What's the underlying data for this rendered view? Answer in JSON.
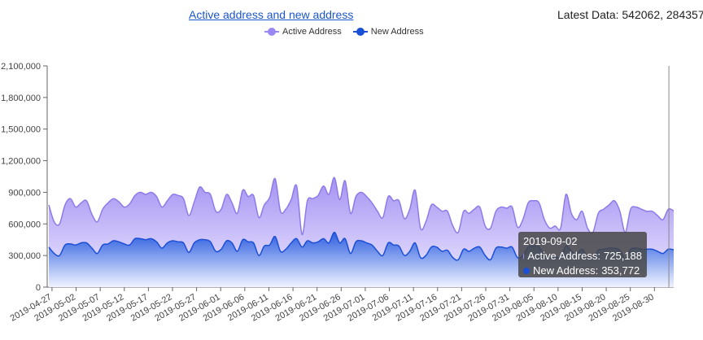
{
  "header": {
    "title": "Active address and new address",
    "latest_label": "Latest Data:",
    "latest_values": "542062, 284357"
  },
  "legend": {
    "items": [
      {
        "label": "Active Address",
        "color": "#9b87f5"
      },
      {
        "label": "New Address",
        "color": "#1a4fd6"
      }
    ]
  },
  "tooltip": {
    "date": "2019-09-02",
    "active_label": "Active Address:",
    "active_value": "725,188",
    "new_label": "New Address:",
    "new_value": "353,772"
  },
  "chart_data": {
    "type": "area",
    "ylim": [
      0,
      2100000
    ],
    "yticks": [
      0,
      300000,
      600000,
      900000,
      1200000,
      1500000,
      1800000,
      2100000
    ],
    "ytick_labels": [
      "0",
      "300,000",
      "600,000",
      "900,000",
      "1,200,000",
      "1,500,000",
      "1,800,000",
      "2,100,000"
    ],
    "x_start": "2019-04-26",
    "x_end": "2019-09-03",
    "xtick_labels": [
      "2019-04-27",
      "2019-05-02",
      "2019-05-07",
      "2019-05-12",
      "2019-05-17",
      "2019-05-22",
      "2019-05-27",
      "2019-06-01",
      "2019-06-06",
      "2019-06-11",
      "2019-06-16",
      "2019-06-21",
      "2019-06-26",
      "2019-07-01",
      "2019-07-06",
      "2019-07-11",
      "2019-07-16",
      "2019-07-21",
      "2019-07-26",
      "2019-07-31",
      "2019-08-05",
      "2019-08-10",
      "2019-08-15",
      "2019-08-20",
      "2019-08-25",
      "2019-08-30"
    ],
    "grid": false,
    "legend_position": "top-center",
    "series": [
      {
        "name": "Active Address",
        "color": "#9b87f5",
        "values": [
          780000,
          620000,
          600000,
          780000,
          840000,
          760000,
          800000,
          820000,
          690000,
          620000,
          740000,
          800000,
          840000,
          810000,
          760000,
          790000,
          870000,
          900000,
          880000,
          900000,
          860000,
          760000,
          820000,
          880000,
          870000,
          840000,
          680000,
          810000,
          950000,
          900000,
          880000,
          720000,
          740000,
          880000,
          800000,
          700000,
          920000,
          860000,
          870000,
          660000,
          780000,
          850000,
          1030000,
          720000,
          740000,
          830000,
          960000,
          500000,
          820000,
          840000,
          870000,
          960000,
          880000,
          1040000,
          830000,
          1010000,
          700000,
          860000,
          900000,
          860000,
          800000,
          720000,
          660000,
          860000,
          820000,
          820000,
          650000,
          740000,
          920000,
          560000,
          620000,
          780000,
          760000,
          720000,
          720000,
          580000,
          520000,
          720000,
          700000,
          740000,
          760000,
          580000,
          560000,
          720000,
          760000,
          750000,
          760000,
          570000,
          640000,
          800000,
          820000,
          800000,
          640000,
          560000,
          580000,
          560000,
          880000,
          700000,
          640000,
          720000,
          560000,
          520000,
          700000,
          740000,
          780000,
          820000,
          720000,
          520000,
          740000,
          760000,
          740000,
          720000,
          720000,
          680000,
          640000,
          740000,
          725188
        ]
      },
      {
        "name": "New Address",
        "color": "#1a4fd6",
        "values": [
          380000,
          320000,
          300000,
          400000,
          410000,
          400000,
          420000,
          420000,
          370000,
          320000,
          400000,
          410000,
          440000,
          430000,
          410000,
          400000,
          460000,
          460000,
          450000,
          460000,
          430000,
          370000,
          420000,
          440000,
          430000,
          420000,
          330000,
          420000,
          450000,
          450000,
          430000,
          340000,
          360000,
          440000,
          420000,
          340000,
          450000,
          430000,
          420000,
          300000,
          390000,
          400000,
          480000,
          340000,
          360000,
          420000,
          460000,
          380000,
          440000,
          420000,
          430000,
          460000,
          420000,
          520000,
          420000,
          460000,
          320000,
          430000,
          440000,
          420000,
          400000,
          340000,
          300000,
          420000,
          400000,
          390000,
          300000,
          340000,
          420000,
          280000,
          300000,
          380000,
          380000,
          340000,
          350000,
          280000,
          260000,
          360000,
          340000,
          370000,
          380000,
          300000,
          260000,
          370000,
          380000,
          370000,
          380000,
          280000,
          300000,
          380000,
          390000,
          380000,
          300000,
          280000,
          290000,
          280000,
          390000,
          340000,
          310000,
          360000,
          280000,
          270000,
          350000,
          360000,
          370000,
          370000,
          350000,
          270000,
          360000,
          370000,
          360000,
          360000,
          360000,
          340000,
          320000,
          360000,
          353772
        ]
      }
    ]
  }
}
